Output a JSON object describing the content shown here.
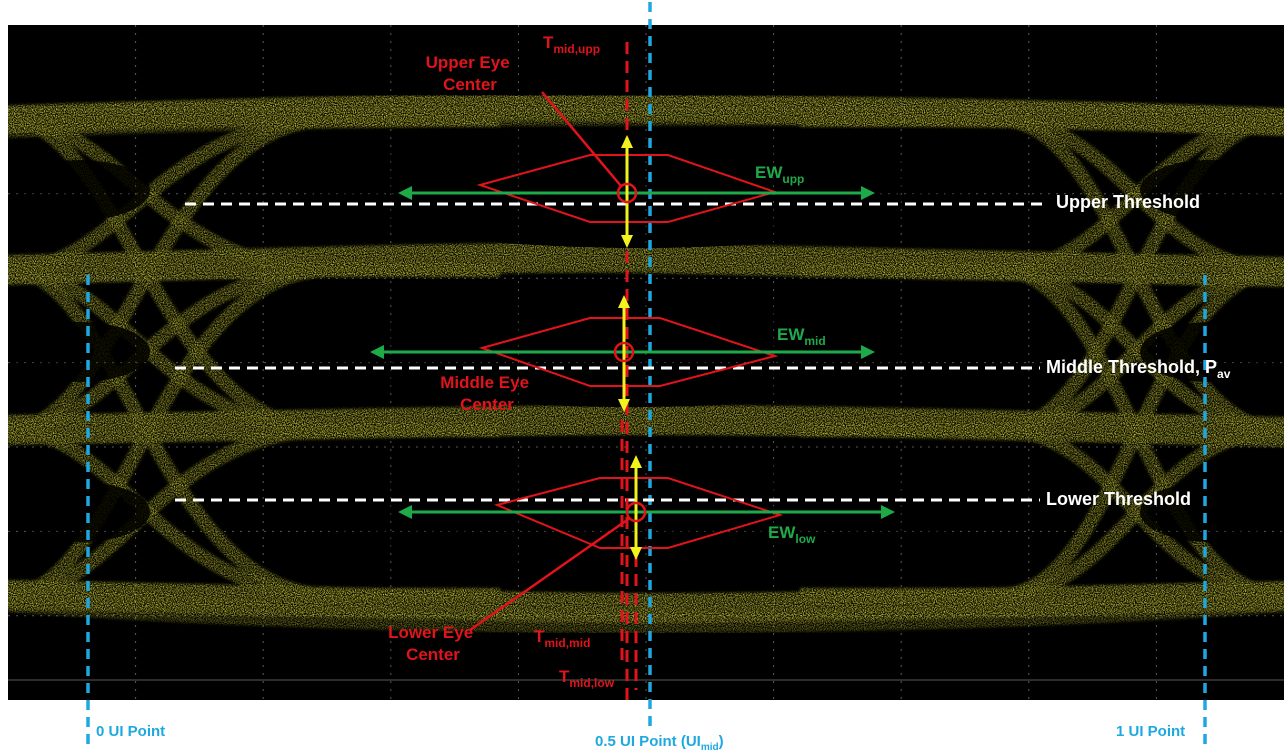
{
  "colors": {
    "background": "#ffffff",
    "scope_screen": "#000000",
    "grid": "#5a5a5a",
    "trace": "#d8d83a",
    "annotation_red": "#e0141a",
    "width_green": "#1faa4a",
    "height_yellow": "#f2f21e",
    "threshold_white": "#ffffff",
    "ui_marker_blue": "#1ea8e0"
  },
  "labels": {
    "t_mid_upp": {
      "main": "T",
      "sub": "mid,upp"
    },
    "upper_eye_center": [
      "Upper Eye",
      "Center"
    ],
    "ew_upp": {
      "main": "EW",
      "sub": "upp"
    },
    "upper_threshold": "Upper Threshold",
    "ew_mid": {
      "main": "EW",
      "sub": "mid"
    },
    "middle_threshold": {
      "main": "Middle Threshold, P",
      "sub": "av"
    },
    "middle_eye_center": [
      "Middle Eye",
      "Center"
    ],
    "lower_threshold": "Lower Threshold",
    "ew_low": {
      "main": "EW",
      "sub": "low"
    },
    "lower_eye_center": [
      "Lower Eye",
      "Center"
    ],
    "t_mid_mid": {
      "main": "T",
      "sub": "mid,mid"
    },
    "t_mid_low": {
      "main": "T",
      "sub": "mid,low"
    },
    "ui_0": "0 UI Point",
    "ui_05": {
      "main": "0.5 UI Point  (UI",
      "sub": "mid",
      "tail": ")"
    },
    "ui_1": "1 UI Point"
  }
}
